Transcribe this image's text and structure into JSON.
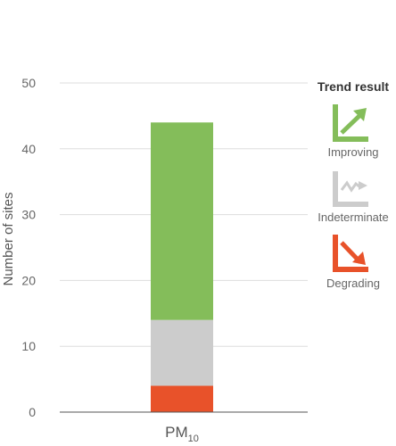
{
  "chart_data": {
    "type": "bar",
    "stacked": true,
    "categories": [
      "PM10"
    ],
    "category_display": {
      "main": "PM",
      "sub": "10"
    },
    "series": [
      {
        "name": "Degrading",
        "values": [
          4
        ],
        "color": "#e8522a"
      },
      {
        "name": "Indeterminate",
        "values": [
          10
        ],
        "color": "#cccccc"
      },
      {
        "name": "Improving",
        "values": [
          30
        ],
        "color": "#84bd5a"
      }
    ],
    "ylabel": "Number of sites",
    "ylim": [
      0,
      50
    ],
    "yticks": [
      0,
      10,
      20,
      30,
      40,
      50
    ],
    "grid": true,
    "legend": {
      "title": "Trend result",
      "placement": "right",
      "items": [
        {
          "label": "Improving",
          "icon": "improving-arrow-icon",
          "color": "#84bd5a"
        },
        {
          "label": "Indeterminate",
          "icon": "indeterminate-arrow-icon",
          "color": "#cccccc"
        },
        {
          "label": "Degrading",
          "icon": "degrading-arrow-icon",
          "color": "#e8522a"
        }
      ]
    }
  }
}
